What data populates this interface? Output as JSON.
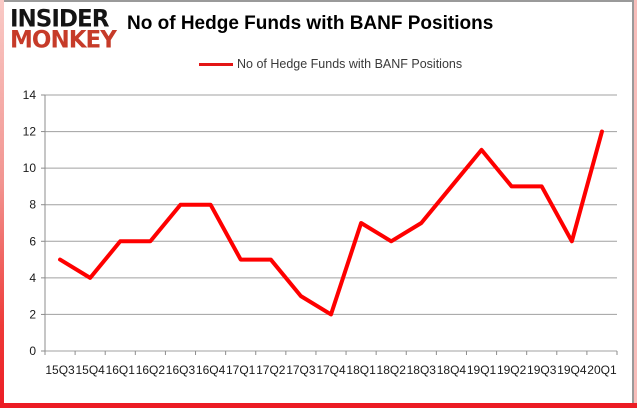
{
  "header": {
    "logo_line1": "INSIDER",
    "logo_line2": "MONKEY",
    "title": "No of Hedge Funds with BANF Positions"
  },
  "legend": {
    "label": "No of Hedge Funds with BANF Positions"
  },
  "colors": {
    "line": "#fe0000",
    "grid": "#a0a0a0",
    "axis": "#8c8c8c",
    "tick_text": "#1a1a1a",
    "logo_black": "#141414",
    "logo_red": "#c63b29",
    "legend_swatch": "#e31515",
    "frame_red": "#ec1c24",
    "frame_pink": "#f7bdba",
    "frame_gray": "#9a9a9a"
  },
  "chart_data": {
    "type": "line",
    "title": "No of Hedge Funds with BANF Positions",
    "categories": [
      "15Q3",
      "15Q4",
      "16Q1",
      "16Q2",
      "16Q3",
      "16Q4",
      "17Q1",
      "17Q2",
      "17Q3",
      "17Q4",
      "18Q1",
      "18Q2",
      "18Q3",
      "18Q4",
      "19Q1",
      "19Q2",
      "19Q3",
      "19Q4",
      "20Q1"
    ],
    "series": [
      {
        "name": "No of Hedge Funds with BANF Positions",
        "values": [
          5,
          4,
          6,
          6,
          8,
          8,
          5,
          5,
          3,
          2,
          7,
          6,
          7,
          9,
          11,
          9,
          9,
          6,
          12
        ]
      }
    ],
    "xlabel": "",
    "ylabel": "",
    "ylim": [
      0,
      14
    ],
    "y_ticks": [
      0,
      2,
      4,
      6,
      8,
      10,
      12,
      14
    ],
    "grid": true,
    "legend_position": "top-center"
  }
}
